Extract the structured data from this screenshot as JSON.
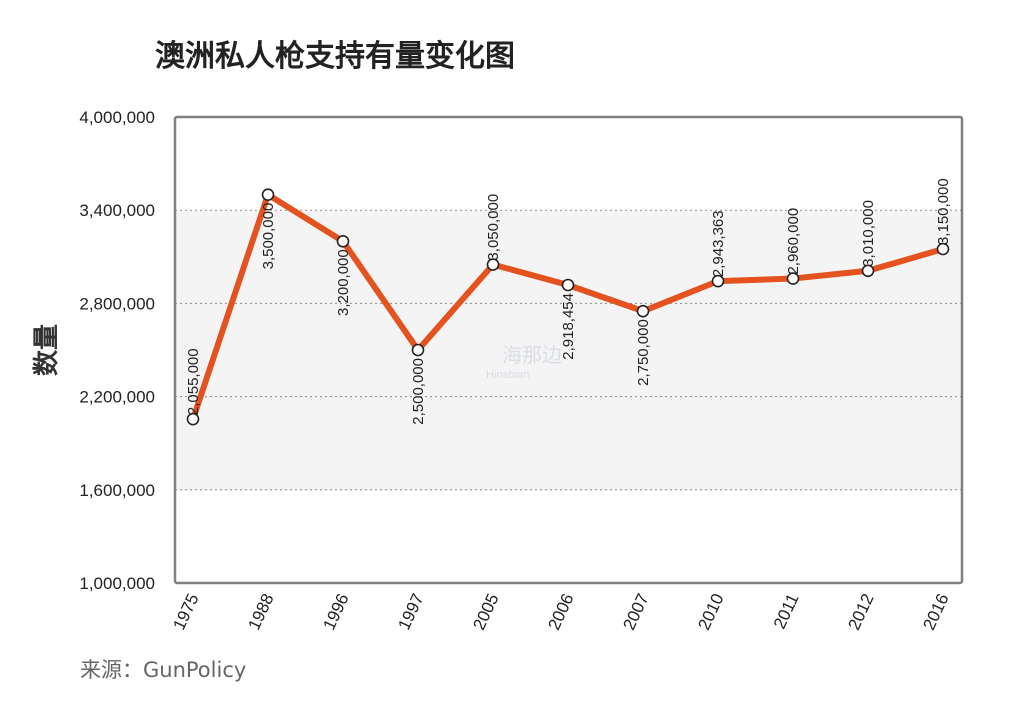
{
  "chart_data": {
    "type": "line",
    "title": "澳洲私人枪支持有量变化图",
    "ylabel": "数量",
    "xlabel": "",
    "categories": [
      "1975",
      "1988",
      "1996",
      "1997",
      "2005",
      "2006",
      "2007",
      "2010",
      "2011",
      "2012",
      "2016"
    ],
    "series": [
      {
        "values": [
          2055000,
          3500000,
          3200000,
          2500000,
          3050000,
          2918454,
          2750000,
          2943363,
          2960000,
          3010000,
          3150000
        ]
      }
    ],
    "data_labels": [
      "2,055,000",
      "3,500,000",
      "3,200,000",
      "2,500,000",
      "3,050,000",
      "2,918,454",
      "2,750,000",
      "2,943,363",
      "2,960,000",
      "3,010,000",
      "3,150,000"
    ],
    "ylim": [
      1000000,
      4000000
    ],
    "yticks": [
      1000000,
      1600000,
      2200000,
      2800000,
      3400000,
      4000000
    ],
    "ytick_labels": [
      "1,000,000",
      "1,600,000",
      "2,200,000",
      "2,800,000",
      "3,400,000",
      "4,000,000"
    ],
    "grid": true,
    "line_color": "#e4531f",
    "marker_fill": "#ffffff",
    "marker_stroke": "#222222"
  },
  "source": "来源：GunPolicy",
  "watermark": {
    "main": "海那边",
    "sub": "Hinabian"
  }
}
